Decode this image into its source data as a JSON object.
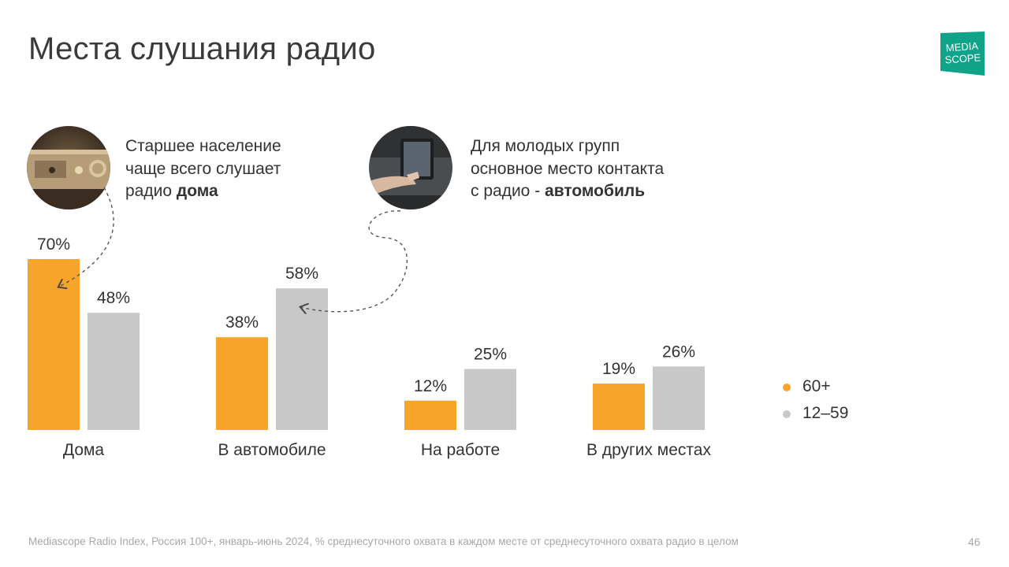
{
  "title": "Места слушания радио",
  "logo": {
    "line1": "MEDIA",
    "line2": "SCOPE",
    "color": "#0fa489"
  },
  "callouts": [
    {
      "lines": [
        "Старшее население",
        "чаще всего слушает"
      ],
      "last_prefix": "радио ",
      "last_bold": "дома"
    },
    {
      "lines": [
        "Для молодых групп",
        "основное место контакта"
      ],
      "last_prefix": "с радио - ",
      "last_bold": "автомобиль"
    }
  ],
  "chart_data": {
    "type": "bar",
    "categories": [
      "Дома",
      "В автомобиле",
      "На работе",
      "В других местах"
    ],
    "series": [
      {
        "name": "60+",
        "values": [
          70,
          38,
          12,
          19
        ],
        "color": "#f7a42b"
      },
      {
        "name": "12–59",
        "values": [
          48,
          58,
          25,
          26
        ],
        "color": "#c8c8c8"
      }
    ],
    "value_suffix": "%",
    "ylim": [
      0,
      100
    ],
    "grid": false,
    "legend_position": "right"
  },
  "footer": {
    "source": "Mediascope Radio Index, Россия 100+, январь-июнь 2024, % среднесуточного охвата в каждом месте от среднесуточного охвата радио в целом",
    "page_number": "46"
  }
}
